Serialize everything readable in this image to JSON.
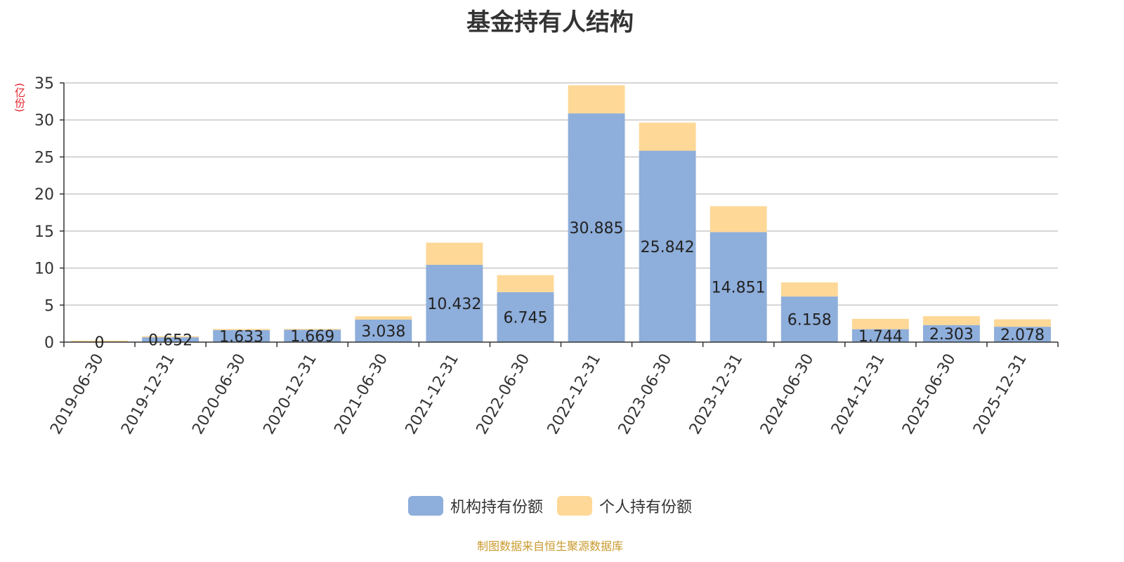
{
  "colors": {
    "institutional": "#8eaedb",
    "individual": "#fed897",
    "ylabel": "#e5202a",
    "source": "#c99a2e",
    "grid": "#c8c8c8"
  },
  "ylabel_text": "(亿份)",
  "source_note": "制图数据来自恒生聚源数据库",
  "chart_data": {
    "type": "bar",
    "stacked": true,
    "title": "基金持有人结构",
    "xlabel": "",
    "ylabel": "(亿份)",
    "ylim": [
      0,
      35
    ],
    "yticks": [
      0,
      5,
      10,
      15,
      20,
      25,
      30,
      35
    ],
    "grid": true,
    "legend_position": "bottom",
    "categories": [
      "2019-06-30",
      "2019-12-31",
      "2020-06-30",
      "2020-12-31",
      "2021-06-30",
      "2021-12-31",
      "2022-06-30",
      "2022-12-31",
      "2023-06-30",
      "2023-12-31",
      "2024-06-30",
      "2024-12-31",
      "2025-06-30",
      "2025-12-31"
    ],
    "series": [
      {
        "name": "机构持有份额",
        "values": [
          0,
          0.652,
          1.633,
          1.669,
          3.038,
          10.432,
          6.745,
          30.885,
          25.842,
          14.851,
          6.158,
          1.744,
          2.303,
          2.078
        ],
        "data_labels": [
          "0",
          "0.652",
          "1.633",
          "1.669",
          "3.038",
          "10.432",
          "6.745",
          "30.885",
          "25.842",
          "14.851",
          "6.158",
          "1.744",
          "2.303",
          "2.078"
        ]
      },
      {
        "name": "个人持有份额",
        "values": [
          0.2,
          0.15,
          0.15,
          0.12,
          0.45,
          3.0,
          2.3,
          3.8,
          3.8,
          3.5,
          1.9,
          1.4,
          1.2,
          1.0
        ]
      }
    ]
  }
}
